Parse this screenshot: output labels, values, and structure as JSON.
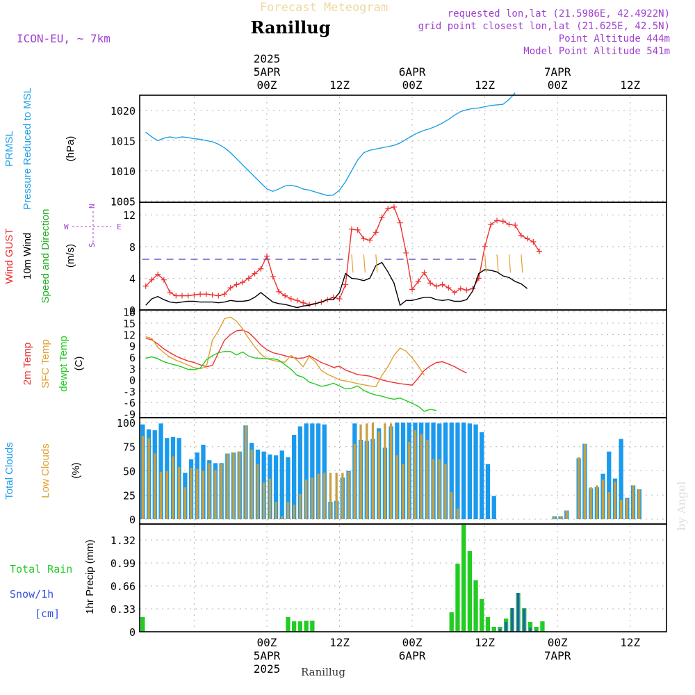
{
  "header": {
    "top_title": "Forecast Meteogram",
    "location": "Ranillug",
    "model": "ICON-EU, ~ 7km",
    "requested": "requested lon,lat (21.5986E, 42.4922N)",
    "grid_point": "grid point closest lon,lat (21.625E, 42.5N)",
    "point_altitude": "Point Altitude 444m",
    "model_altitude": "Model Point Altitude 541m",
    "footer_location": "Ranillug",
    "watermark": "by Angel"
  },
  "time_axis": {
    "top_labels": [
      {
        "lines": [
          "2025",
          "5APR",
          "00Z"
        ],
        "hour": 21
      },
      {
        "lines": [
          "12Z"
        ],
        "hour": 33
      },
      {
        "lines": [
          "6APR",
          "00Z"
        ],
        "hour": 45
      },
      {
        "lines": [
          "12Z"
        ],
        "hour": 57
      },
      {
        "lines": [
          "7APR",
          "00Z"
        ],
        "hour": 69
      },
      {
        "lines": [
          "12Z"
        ],
        "hour": 81
      }
    ],
    "bottom_labels": [
      {
        "lines": [
          "00Z",
          "5APR",
          "2025"
        ],
        "hour": 21
      },
      {
        "lines": [
          "12Z"
        ],
        "hour": 33
      },
      {
        "lines": [
          "00Z",
          "6APR"
        ],
        "hour": 45
      },
      {
        "lines": [
          "12Z"
        ],
        "hour": 57
      },
      {
        "lines": [
          "00Z",
          "7APR"
        ],
        "hour": 69
      },
      {
        "lines": [
          "12Z"
        ],
        "hour": 81
      }
    ]
  },
  "colors": {
    "pressure": "#1ea0e6",
    "gust": "#ee3030",
    "wind": "#000000",
    "direction": "#20b020",
    "temp": "#ee3030",
    "sfc": "#e0a030",
    "dewpt": "#20cc20",
    "total_clouds": "#1a9aee",
    "low_clouds": "#c8a040",
    "rain": "#22cc22",
    "snow": "#3050e0",
    "compass": "#a040d0"
  },
  "chart_data": [
    {
      "type": "line",
      "panel": "pressure",
      "side_labels": [
        "PRMSL",
        "Pressure Reduced to MSL"
      ],
      "unit": "(hPa)",
      "y_ticks": [
        1005,
        1010,
        1015,
        1020
      ],
      "ylim": [
        1004.8,
        1022.5
      ],
      "x_start_hour": 1,
      "series": [
        {
          "color_key": "pressure",
          "values": [
            1016.4,
            1015.6,
            1015.0,
            1015.4,
            1015.6,
            1015.4,
            1015.6,
            1015.5,
            1015.3,
            1015.2,
            1015.0,
            1014.8,
            1014.4,
            1013.8,
            1013.0,
            1012.0,
            1011.0,
            1010.0,
            1009.0,
            1008.0,
            1007.0,
            1006.6,
            1007.0,
            1007.5,
            1007.6,
            1007.4,
            1007.0,
            1006.8,
            1006.5,
            1006.2,
            1005.9,
            1006.0,
            1006.8,
            1008.2,
            1010.0,
            1011.8,
            1013.0,
            1013.4,
            1013.6,
            1013.8,
            1014.0,
            1014.2,
            1014.6,
            1015.2,
            1015.8,
            1016.3,
            1016.7,
            1017.0,
            1017.4,
            1017.9,
            1018.5,
            1019.2,
            1019.8,
            1020.1,
            1020.3,
            1020.4,
            1020.6,
            1020.8,
            1020.9,
            1021.0,
            1021.8,
            1022.9
          ]
        }
      ]
    },
    {
      "type": "line",
      "panel": "wind",
      "side_labels": [
        "Wind GUST",
        "10m Wind",
        "Speed and Direction"
      ],
      "unit": "(m/s)",
      "compass": [
        "N",
        "S",
        "E",
        "W"
      ],
      "y_ticks": [
        0,
        4,
        8,
        12
      ],
      "ylim": [
        0,
        13.6
      ],
      "x_start_hour": 1,
      "series": [
        {
          "color_key": "gust",
          "marker": "plus",
          "values": [
            3.0,
            3.8,
            4.5,
            3.8,
            2.2,
            1.8,
            1.8,
            1.8,
            1.9,
            2.0,
            2.0,
            1.9,
            1.8,
            2.0,
            2.8,
            3.2,
            3.5,
            4.0,
            4.6,
            5.2,
            6.8,
            4.2,
            2.3,
            1.8,
            1.4,
            1.2,
            0.9,
            0.7,
            0.8,
            1.0,
            1.3,
            1.6,
            1.4,
            3.2,
            10.2,
            10.1,
            9.0,
            8.8,
            9.8,
            11.7,
            12.8,
            13.0,
            11.0,
            7.2,
            2.6,
            3.6,
            4.7,
            3.4,
            3.0,
            3.2,
            2.8,
            2.2,
            2.7,
            2.5,
            2.7,
            4.0,
            8.0,
            10.8,
            11.3,
            11.2,
            10.8,
            10.7,
            9.4,
            9.0,
            8.6,
            7.4
          ]
        },
        {
          "color_key": "wind",
          "values": [
            0.6,
            1.4,
            1.7,
            1.3,
            1.0,
            0.9,
            1.0,
            1.1,
            1.1,
            1.0,
            1.0,
            1.0,
            0.9,
            1.0,
            1.2,
            1.1,
            1.1,
            1.2,
            1.6,
            2.2,
            1.6,
            1.0,
            0.8,
            0.7,
            0.5,
            0.3,
            0.5,
            0.6,
            0.8,
            1.0,
            1.3,
            1.3,
            2.2,
            4.6,
            4.0,
            3.9,
            3.7,
            4.0,
            5.6,
            6.0,
            4.8,
            3.4,
            0.6,
            1.2,
            1.2,
            1.4,
            1.6,
            1.6,
            1.3,
            1.2,
            1.3,
            1.1,
            1.1,
            1.3,
            2.4,
            4.6,
            5.1,
            5.0,
            4.8,
            4.3,
            4.1,
            3.6,
            3.3,
            2.7
          ]
        }
      ]
    },
    {
      "type": "line",
      "panel": "temperature",
      "side_labels": [
        "2m Temp",
        "SFC Temp",
        "dewpt Temp"
      ],
      "unit": "(C)",
      "y_ticks": [
        -9,
        -6,
        -3,
        0,
        3,
        6,
        9,
        12,
        15,
        18
      ],
      "ylim": [
        -10,
        18.5
      ],
      "x_start_hour": 1,
      "series": [
        {
          "color_key": "temp",
          "values": [
            11.0,
            10.6,
            9.5,
            8.2,
            7.2,
            6.3,
            5.6,
            5.0,
            4.6,
            4.0,
            3.5,
            3.8,
            7.2,
            10.5,
            12.0,
            13.0,
            13.2,
            12.5,
            11.0,
            9.2,
            8.0,
            7.2,
            6.8,
            6.4,
            6.0,
            5.7,
            5.8,
            6.4,
            5.5,
            4.6,
            4.0,
            3.3,
            3.6,
            2.6,
            2.0,
            1.4,
            1.2,
            1.0,
            0.5,
            0.0,
            -0.4,
            -0.7,
            -1.0,
            -1.2,
            -1.4,
            0.5,
            2.5,
            3.7,
            4.6,
            4.8,
            4.2,
            3.5,
            2.6,
            1.8
          ]
        },
        {
          "color_key": "sfc",
          "values": [
            11.4,
            11.0,
            8.6,
            7.2,
            6.0,
            5.2,
            4.6,
            3.9,
            3.2,
            3.0,
            3.4,
            10.5,
            13.0,
            16.2,
            16.6,
            15.5,
            13.5,
            11.0,
            8.8,
            6.8,
            5.6,
            5.2,
            4.8,
            4.7,
            6.5,
            5.2,
            3.5,
            6.2,
            4.8,
            2.5,
            1.5,
            0.8,
            0.0,
            -0.3,
            -0.6,
            -1.0,
            -1.3,
            -1.6,
            -1.8,
            1.2,
            3.5,
            6.5,
            8.4,
            7.6,
            5.8,
            3.7,
            1.2
          ]
        },
        {
          "color_key": "dewpt",
          "values": [
            5.7,
            6.1,
            5.6,
            4.8,
            4.3,
            3.9,
            3.4,
            2.8,
            2.7,
            3.1,
            5.3,
            6.4,
            7.2,
            7.5,
            7.5,
            6.6,
            7.4,
            6.3,
            5.8,
            5.7,
            5.6,
            5.6,
            5.2,
            4.0,
            2.8,
            1.2,
            0.7,
            -0.6,
            -1.1,
            -1.7,
            -1.4,
            -0.9,
            -1.6,
            -2.4,
            -2.2,
            -1.6,
            -2.8,
            -3.5,
            -4.0,
            -4.3,
            -4.8,
            -5.1,
            -4.8,
            -5.5,
            -6.2,
            -7.0,
            -8.3,
            -7.8,
            -8.1
          ]
        }
      ]
    },
    {
      "type": "bar",
      "panel": "clouds",
      "side_labels": [
        "Total Clouds",
        "Low Clouds"
      ],
      "unit": "(%)",
      "y_ticks": [
        0,
        25,
        50,
        75,
        100
      ],
      "ylim": [
        -5,
        105
      ],
      "x_start_hour": 0,
      "series": [
        {
          "color_key": "total_clouds",
          "values": [
            98,
            93,
            92,
            99,
            84,
            85,
            84,
            48,
            62,
            69,
            77,
            61,
            58,
            58,
            68,
            69,
            70,
            97,
            79,
            72,
            70,
            67,
            66,
            71,
            64,
            87,
            96,
            99,
            99,
            99,
            98,
            18,
            19,
            43,
            50,
            99,
            82,
            81,
            83,
            94,
            74,
            96,
            100,
            100,
            100,
            100,
            100,
            100,
            100,
            99,
            100,
            100,
            100,
            100,
            99,
            98,
            90,
            57,
            24,
            0,
            0,
            0,
            0,
            0,
            0,
            0,
            0,
            0,
            3,
            3,
            9,
            0,
            63,
            78,
            32,
            33,
            47,
            70,
            42,
            83,
            22,
            35,
            31
          ]
        },
        {
          "color_key": "low_clouds",
          "values": [
            86,
            84,
            68,
            49,
            50,
            65,
            54,
            33,
            53,
            52,
            50,
            58,
            51,
            57,
            68,
            69,
            70,
            97,
            72,
            57,
            38,
            42,
            18,
            3,
            18,
            15,
            26,
            41,
            43,
            47,
            48,
            48,
            48,
            48,
            49,
            78,
            98,
            99,
            100,
            91,
            99,
            99,
            66,
            57,
            80,
            92,
            88,
            82,
            62,
            62,
            57,
            28,
            11,
            0,
            0,
            0,
            0,
            0,
            0,
            0,
            0,
            0,
            0,
            0,
            0,
            0,
            0,
            0,
            3,
            3,
            9,
            0,
            64,
            78,
            33,
            35,
            41,
            28,
            39,
            20,
            21,
            35,
            31
          ]
        }
      ]
    },
    {
      "type": "bar",
      "panel": "precipitation",
      "side_labels": [
        "Total Rain",
        "Snow/1h",
        "[cm]"
      ],
      "unit": "1hr Precip (mm)",
      "y_ticks": [
        0,
        0.33,
        0.66,
        0.99,
        1.32
      ],
      "ylim": [
        0,
        1.55
      ],
      "x_start_hour": 0,
      "series": [
        {
          "color_key": "rain",
          "values": [
            0.21,
            0,
            0,
            0,
            0,
            0,
            0,
            0,
            0,
            0,
            0,
            0,
            0,
            0,
            0,
            0,
            0,
            0,
            0,
            0,
            0,
            0,
            0,
            0,
            0.21,
            0.15,
            0.15,
            0.16,
            0.16,
            0,
            0,
            0,
            0,
            0,
            0,
            0,
            0,
            0,
            0,
            0,
            0,
            0,
            0,
            0,
            0,
            0,
            0,
            0,
            0,
            0,
            0,
            0.28,
            0.98,
            1.55,
            1.16,
            0.74,
            0.47,
            0.21,
            0.07,
            0.07,
            0.19,
            0.34,
            0.56,
            0.34,
            0.14,
            0.07,
            0.15,
            0,
            0,
            0,
            0,
            0,
            0,
            0,
            0,
            0,
            0,
            0,
            0,
            0,
            0,
            0,
            0
          ]
        },
        {
          "color_key": "snow",
          "values": [
            0,
            0,
            0,
            0,
            0,
            0,
            0,
            0,
            0,
            0,
            0,
            0,
            0,
            0,
            0,
            0,
            0,
            0,
            0,
            0,
            0,
            0,
            0,
            0,
            0,
            0,
            0,
            0,
            0,
            0,
            0,
            0,
            0,
            0,
            0,
            0,
            0,
            0,
            0,
            0,
            0,
            0,
            0,
            0,
            0,
            0,
            0,
            0,
            0,
            0,
            0,
            0,
            0,
            0,
            0,
            0,
            0,
            0,
            0,
            0.04,
            0.14,
            0.34,
            0.56,
            0.33,
            0.06,
            0.02,
            0,
            0,
            0,
            0,
            0,
            0,
            0,
            0,
            0,
            0,
            0,
            0,
            0,
            0,
            0,
            0,
            0
          ]
        }
      ]
    }
  ]
}
